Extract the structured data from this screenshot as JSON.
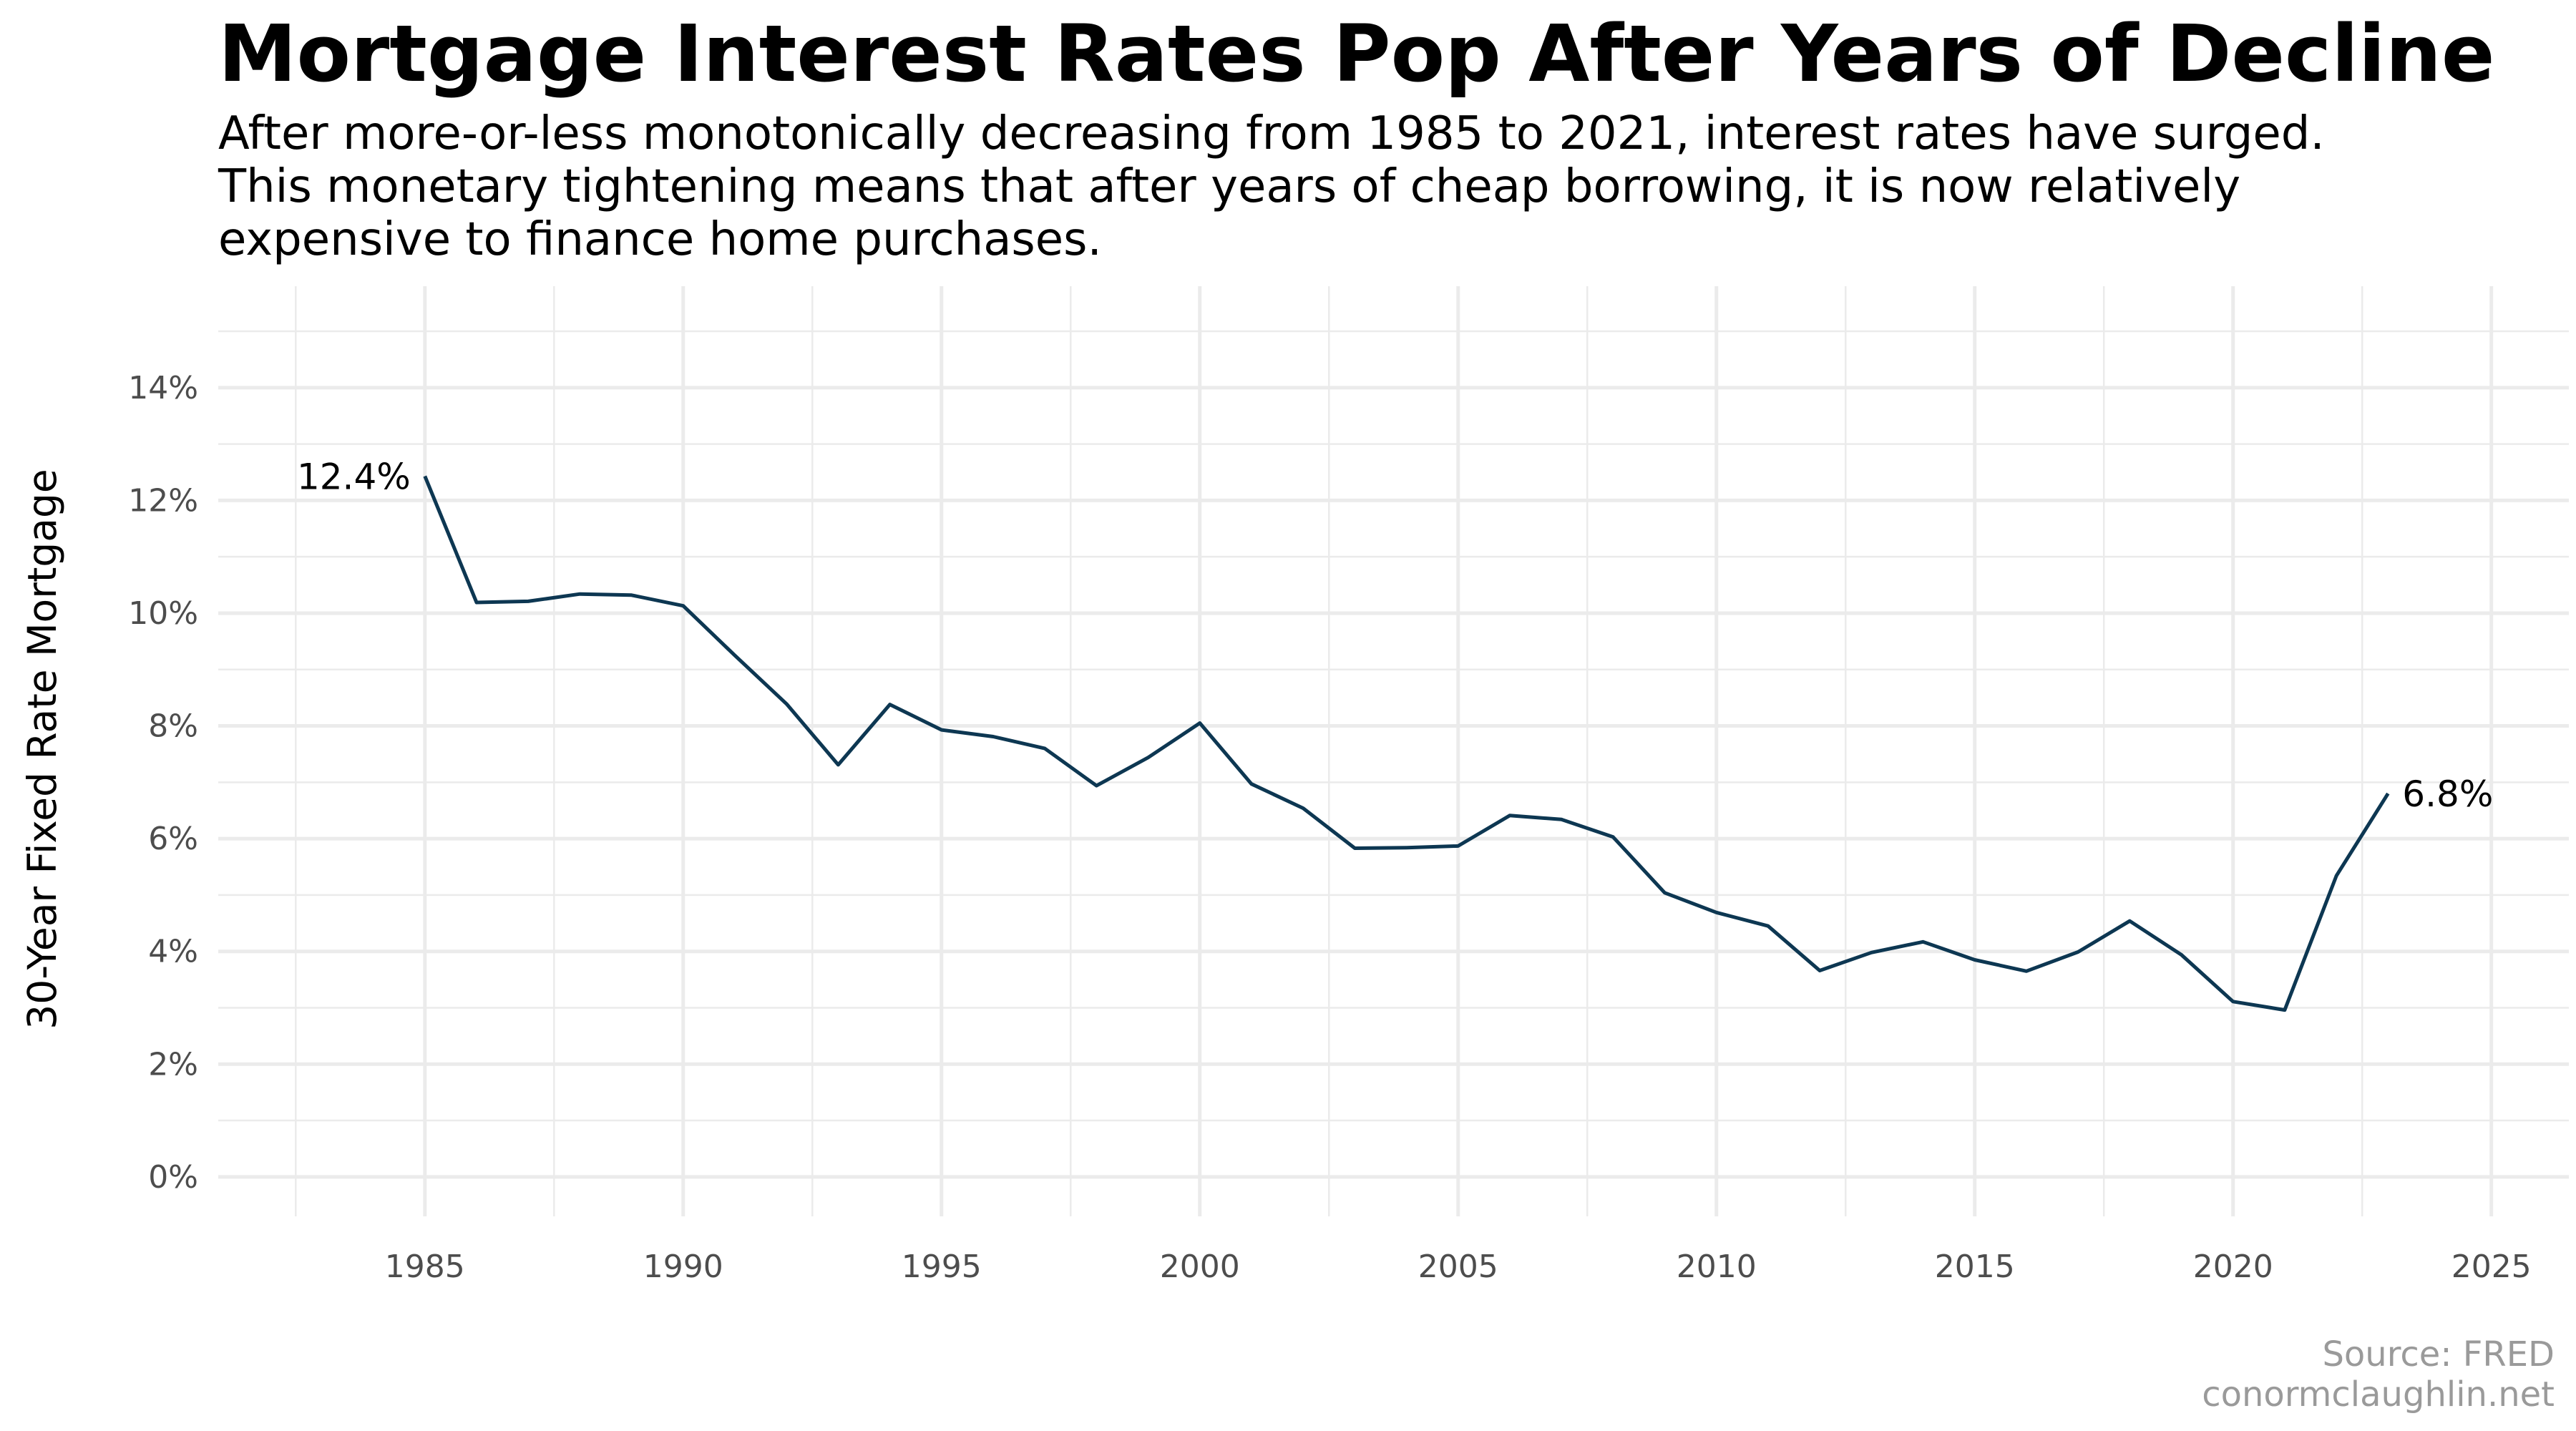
{
  "chart_data": {
    "type": "line",
    "title": "Mortgage Interest Rates Pop After Years of Decline",
    "subtitle": [
      "After more-or-less monotonically decreasing from 1985 to 2021, interest rates have surged.",
      "This monetary tightening means that after years of cheap borrowing, it is now relatively",
      "expensive to finance home purchases."
    ],
    "xlabel": "",
    "ylabel": "30-Year Fixed Rate Mortgage",
    "xlim": [
      1981,
      2026.5
    ],
    "ylim": [
      -0.7,
      15.8
    ],
    "x_ticks": [
      1985,
      1990,
      1995,
      2000,
      2005,
      2010,
      2015,
      2020,
      2025
    ],
    "x_tick_labels": [
      "1985",
      "1990",
      "1995",
      "2000",
      "2005",
      "2010",
      "2015",
      "2020",
      "2025"
    ],
    "x_minor_ticks": [
      1982.5,
      1987.5,
      1992.5,
      1997.5,
      2002.5,
      2007.5,
      2012.5,
      2017.5,
      2022.5
    ],
    "y_ticks": [
      0,
      2,
      4,
      6,
      8,
      10,
      12,
      14
    ],
    "y_tick_labels": [
      "0%",
      "2%",
      "4%",
      "6%",
      "8%",
      "10%",
      "12%",
      "14%"
    ],
    "y_minor_ticks": [
      1,
      3,
      5,
      7,
      9,
      11,
      13,
      15
    ],
    "grid": true,
    "line_color": "#0d3752",
    "grid_color": "#ebebeb",
    "x": [
      1985,
      1986,
      1987,
      1988,
      1989,
      1990,
      1991,
      1992,
      1993,
      1994,
      1995,
      1996,
      1997,
      1998,
      1999,
      2000,
      2001,
      2002,
      2003,
      2004,
      2005,
      2006,
      2007,
      2008,
      2009,
      2010,
      2011,
      2012,
      2013,
      2014,
      2015,
      2016,
      2017,
      2018,
      2019,
      2020,
      2021,
      2022,
      2023
    ],
    "series": [
      {
        "values": [
          12.43,
          10.19,
          10.21,
          10.34,
          10.32,
          10.13,
          9.25,
          8.39,
          7.31,
          8.38,
          7.93,
          7.81,
          7.6,
          6.94,
          7.44,
          8.05,
          6.97,
          6.54,
          5.83,
          5.84,
          5.87,
          6.41,
          6.34,
          6.03,
          5.04,
          4.69,
          4.45,
          3.66,
          3.98,
          4.17,
          3.85,
          3.65,
          3.99,
          4.54,
          3.94,
          3.11,
          2.96,
          5.34,
          6.8
        ]
      }
    ],
    "annotations": [
      {
        "text": "12.4%",
        "x": 1985,
        "y": 12.43,
        "side": "left"
      },
      {
        "text": "6.8%",
        "x": 2023,
        "y": 6.8,
        "side": "right"
      }
    ],
    "caption": [
      "Source: FRED",
      "conormclaughlin.net"
    ]
  }
}
